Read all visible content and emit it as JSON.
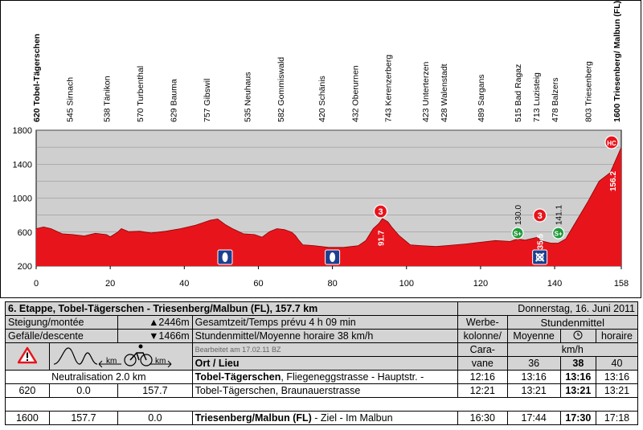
{
  "chart_data": {
    "type": "area",
    "title": "6. Etappe, Tobel-Tägerschen - Triesenberg/Malbun (FL), 157.7 km",
    "xlabel": "",
    "ylabel": "",
    "xlim": [
      0,
      158
    ],
    "ylim": [
      200,
      1800
    ],
    "xticks": [
      "0",
      "20",
      "40",
      "60",
      "80",
      "100",
      "120",
      "140",
      "158"
    ],
    "yticks": [
      "200",
      "600",
      "1000",
      "1400",
      "1800"
    ],
    "grid": true,
    "fill_color": "#e8141c",
    "background_color": "#cfcfcf",
    "profile": [
      [
        0,
        640
      ],
      [
        2,
        660
      ],
      [
        4,
        640
      ],
      [
        7,
        580
      ],
      [
        10,
        570
      ],
      [
        13,
        555
      ],
      [
        16,
        585
      ],
      [
        19,
        570
      ],
      [
        20,
        545
      ],
      [
        22,
        600
      ],
      [
        23,
        640
      ],
      [
        25,
        605
      ],
      [
        28,
        610
      ],
      [
        31,
        590
      ],
      [
        35,
        610
      ],
      [
        39,
        640
      ],
      [
        43,
        680
      ],
      [
        47,
        740
      ],
      [
        49,
        755
      ],
      [
        51,
        690
      ],
      [
        53,
        640
      ],
      [
        56,
        580
      ],
      [
        59,
        570
      ],
      [
        61,
        540
      ],
      [
        63,
        605
      ],
      [
        65,
        640
      ],
      [
        67,
        630
      ],
      [
        69,
        600
      ],
      [
        70,
        560
      ],
      [
        71,
        500
      ],
      [
        72,
        450
      ],
      [
        75,
        440
      ],
      [
        79,
        420
      ],
      [
        83,
        420
      ],
      [
        87,
        440
      ],
      [
        89,
        500
      ],
      [
        91,
        640
      ],
      [
        92.5,
        700
      ],
      [
        93.5,
        760
      ],
      [
        95,
        720
      ],
      [
        96,
        660
      ],
      [
        98,
        560
      ],
      [
        101,
        450
      ],
      [
        104,
        440
      ],
      [
        108,
        430
      ],
      [
        112,
        445
      ],
      [
        116,
        460
      ],
      [
        120,
        480
      ],
      [
        124,
        500
      ],
      [
        128,
        490
      ],
      [
        130,
        520
      ],
      [
        132,
        505
      ],
      [
        135.5,
        540
      ],
      [
        136,
        500
      ],
      [
        139,
        470
      ],
      [
        141,
        470
      ],
      [
        143,
        520
      ],
      [
        146,
        740
      ],
      [
        149,
        960
      ],
      [
        152,
        1200
      ],
      [
        155,
        1300
      ],
      [
        158,
        1600
      ]
    ],
    "locations": [
      {
        "km": 0,
        "label": "620 Tobel-Tägerschen"
      },
      {
        "km": 9,
        "label": "545 Sirnach"
      },
      {
        "km": 19,
        "label": "538 Tänikon"
      },
      {
        "km": 28,
        "label": "570 Turbenthal"
      },
      {
        "km": 37,
        "label": "629 Bauma"
      },
      {
        "km": 46,
        "label": "757 Gibswil"
      },
      {
        "km": 57,
        "label": "535 Neuhaus"
      },
      {
        "km": 66,
        "label": "582 Gommiswald"
      },
      {
        "km": 77,
        "label": "420 Schänis"
      },
      {
        "km": 86,
        "label": "432 Oberurnen"
      },
      {
        "km": 95,
        "label": "743 Kerenzerberg"
      },
      {
        "km": 105,
        "label": "423 Unterterzen"
      },
      {
        "km": 110,
        "label": "428 Walenstadt"
      },
      {
        "km": 120,
        "label": "489 Sargans"
      },
      {
        "km": 130,
        "label": "515 Bad Ragaz"
      },
      {
        "km": 135,
        "label": "713 Luzisteig"
      },
      {
        "km": 140,
        "label": "478 Balzers"
      },
      {
        "km": 149,
        "label": "803 Triesenberg"
      },
      {
        "km": 158,
        "label": "1600 Triesenberg/ Malbun (FL)"
      }
    ],
    "climbs": [
      {
        "km": 93,
        "category": "3",
        "km_label": "91.7"
      },
      {
        "km": 136,
        "category": "3",
        "km_label": "135.5"
      },
      {
        "km": 158,
        "category": "HC",
        "km_label": "156.2"
      }
    ],
    "sprints": [
      {
        "km": 130,
        "label": "S+",
        "km_label": "130.0"
      },
      {
        "km": 141,
        "label": "S+",
        "km_label": "141.1"
      }
    ],
    "feed_icons": [
      {
        "km": 51,
        "name": "feed-zone-icon"
      },
      {
        "km": 80,
        "name": "feed-zone-icon"
      },
      {
        "km": 136,
        "name": "cross-icon"
      }
    ]
  },
  "table": {
    "stage_title": "6. Etappe, Tobel-Tägerschen - Triesenberg/Malbun (FL), 157.7 km",
    "date": "Donnerstag, 16. Juni 2011",
    "climb_label": "Steigung/montée",
    "climb_value": "▲2446m",
    "descent_label": "Gefälle/descente",
    "descent_value": "▼1466m",
    "total_time": "Gesamtzeit/Temps prévu 4 h 09 min",
    "avg_speed": "Stundenmittel/Moyenne horaire 38 km/h",
    "caravan_1": "Werbe-",
    "caravan_2": "kolonne/",
    "caravan_3": "Cara-",
    "caravan_4": "vane",
    "speed_header": "Stundenmittel",
    "speed_moyenne": "Moyenne",
    "speed_horaire": "horaire",
    "speed_unit": "km/h",
    "speeds": [
      "36",
      "38",
      "40"
    ],
    "edited": "Bearbeitet am 17.02.11 BZ",
    "place_header": "Ort / Lieu",
    "km_unit_1": "km",
    "km_unit_2": "km",
    "rows": [
      {
        "col1": "Neutralisation 2.0 km",
        "place_bold": "Tobel-Tägerschen",
        "place_rest": ", Fliegeneggstrasse - Hauptstr. -",
        "caravan": "12:16",
        "t36": "13:16",
        "t38": "13:16",
        "t40": "13:16"
      },
      {
        "alt": "620",
        "km_done": "0.0",
        "km_left": "157.7",
        "place": "Tobel-Tägerschen, Braunauerstrasse",
        "caravan": "12:21",
        "t36": "13:21",
        "t38": "13:21",
        "t40": "13:21"
      },
      {
        "alt": "1600",
        "km_done": "157.7",
        "km_left": "0.0",
        "place_bold": "Triesenberg/Malbun (FL)",
        "place_rest": " - Ziel - Im Malbun",
        "caravan": "16:30",
        "t36": "17:44",
        "t38": "17:30",
        "t40": "17:18"
      }
    ]
  }
}
